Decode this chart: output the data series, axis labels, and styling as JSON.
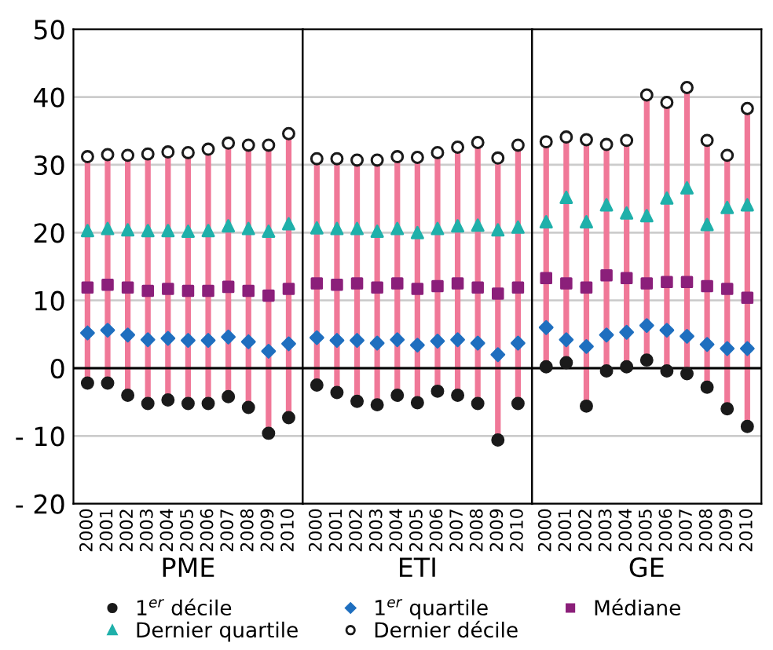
{
  "chart_data": [
    {
      "type": "scatter",
      "xlabel": "PME",
      "categories": [
        "2000",
        "2001",
        "2002",
        "2003",
        "2004",
        "2005",
        "2006",
        "2007",
        "2008",
        "2009",
        "2010"
      ],
      "ylim": [
        -20,
        50
      ],
      "yticks": [
        {
          "value": -20,
          "label": "- 20"
        },
        {
          "value": -10,
          "label": "- 10"
        },
        0,
        10,
        20,
        30,
        40,
        50
      ],
      "grid": "y",
      "legend": "bottom",
      "ref_lines": [
        {
          "axis": "y",
          "value": 0,
          "color": "#000000"
        }
      ],
      "series": [
        {
          "name": "1$^{er}$ décile",
          "color": "#1a1a1a",
          "marker": "circle",
          "values": [
            -2.2,
            -2.2,
            -4.0,
            -5.2,
            -4.7,
            -5.2,
            -5.2,
            -4.2,
            -5.8,
            -9.6,
            -7.3
          ]
        },
        {
          "name": "1$^{er}$ quartile",
          "color": "#1f6fbf",
          "marker": "diamond",
          "values": [
            5.2,
            5.6,
            4.9,
            4.2,
            4.4,
            4.1,
            4.1,
            4.6,
            3.9,
            2.5,
            3.6
          ]
        },
        {
          "name": "Médiane",
          "color": "#8b1f7a",
          "marker": "square",
          "values": [
            11.9,
            12.3,
            11.9,
            11.4,
            11.7,
            11.4,
            11.4,
            12.0,
            11.4,
            10.7,
            11.7
          ]
        },
        {
          "name": "Dernier quartile",
          "color": "#1fb0aa",
          "marker": "triangle",
          "values": [
            20.3,
            20.6,
            20.4,
            20.3,
            20.3,
            20.2,
            20.3,
            21.0,
            20.6,
            20.2,
            21.3
          ]
        },
        {
          "name": "Dernier décile",
          "color": "#ffffff",
          "marker": "circle",
          "values": [
            31.2,
            31.5,
            31.4,
            31.6,
            31.9,
            31.8,
            32.3,
            33.2,
            32.9,
            32.9,
            34.6
          ]
        }
      ]
    },
    {
      "type": "scatter",
      "xlabel": "ETI",
      "categories": [
        "2000",
        "2001",
        "2002",
        "2003",
        "2004",
        "2005",
        "2006",
        "2007",
        "2008",
        "2009",
        "2010"
      ],
      "ylim": [
        -20,
        50
      ],
      "grid": "y",
      "tick_labels": "x",
      "ref_lines": [
        {
          "axis": "y",
          "value": 0,
          "color": "#000000"
        }
      ],
      "series": [
        {
          "color": "#1a1a1a",
          "marker": "circle",
          "values": [
            -2.5,
            -3.6,
            -4.9,
            -5.4,
            -4.0,
            -5.1,
            -3.4,
            -4.0,
            -5.2,
            -10.6,
            -5.2
          ]
        },
        {
          "color": "#1f6fbf",
          "marker": "diamond",
          "values": [
            4.5,
            4.1,
            4.1,
            3.7,
            4.2,
            3.4,
            4.0,
            4.2,
            3.7,
            2.0,
            3.7
          ]
        },
        {
          "color": "#8b1f7a",
          "marker": "square",
          "values": [
            12.5,
            12.3,
            12.5,
            11.9,
            12.5,
            11.7,
            12.1,
            12.5,
            11.9,
            11.0,
            11.9
          ]
        },
        {
          "color": "#1fb0aa",
          "marker": "triangle",
          "values": [
            20.7,
            20.6,
            20.6,
            20.2,
            20.6,
            20.0,
            20.6,
            21.0,
            21.1,
            20.4,
            20.8
          ]
        },
        {
          "color": "#ffffff",
          "marker": "circle",
          "values": [
            30.9,
            30.9,
            30.7,
            30.7,
            31.2,
            31.1,
            31.8,
            32.6,
            33.3,
            31.0,
            32.9
          ]
        }
      ]
    },
    {
      "type": "scatter",
      "xlabel": "GE",
      "categories": [
        "2000",
        "2001",
        "2002",
        "2003",
        "2004",
        "2005",
        "2006",
        "2007",
        "2008",
        "2009",
        "2010"
      ],
      "ylim": [
        -20,
        50
      ],
      "grid": "y",
      "tick_labels": "x",
      "ref_lines": [
        {
          "axis": "y",
          "value": 0,
          "color": "#000000"
        }
      ],
      "series": [
        {
          "color": "#1a1a1a",
          "marker": "circle",
          "values": [
            0.2,
            0.8,
            -5.6,
            -0.4,
            0.2,
            1.2,
            -0.4,
            -0.8,
            -2.8,
            -6.0,
            -8.6
          ]
        },
        {
          "color": "#1f6fbf",
          "marker": "diamond",
          "values": [
            6.0,
            4.2,
            3.2,
            4.9,
            5.3,
            6.3,
            5.6,
            4.7,
            3.5,
            2.9,
            2.9
          ]
        },
        {
          "color": "#8b1f7a",
          "marker": "square",
          "values": [
            13.3,
            12.5,
            11.9,
            13.7,
            13.3,
            12.5,
            12.7,
            12.7,
            12.1,
            11.7,
            10.4
          ]
        },
        {
          "color": "#1fb0aa",
          "marker": "triangle",
          "values": [
            21.6,
            25.2,
            21.6,
            24.1,
            22.9,
            22.5,
            25.1,
            26.6,
            21.2,
            23.7,
            24.1
          ]
        },
        {
          "color": "#ffffff",
          "marker": "circle",
          "values": [
            33.4,
            34.1,
            33.7,
            33.0,
            33.6,
            40.3,
            39.2,
            41.4,
            33.6,
            31.4,
            38.3
          ]
        }
      ]
    }
  ]
}
